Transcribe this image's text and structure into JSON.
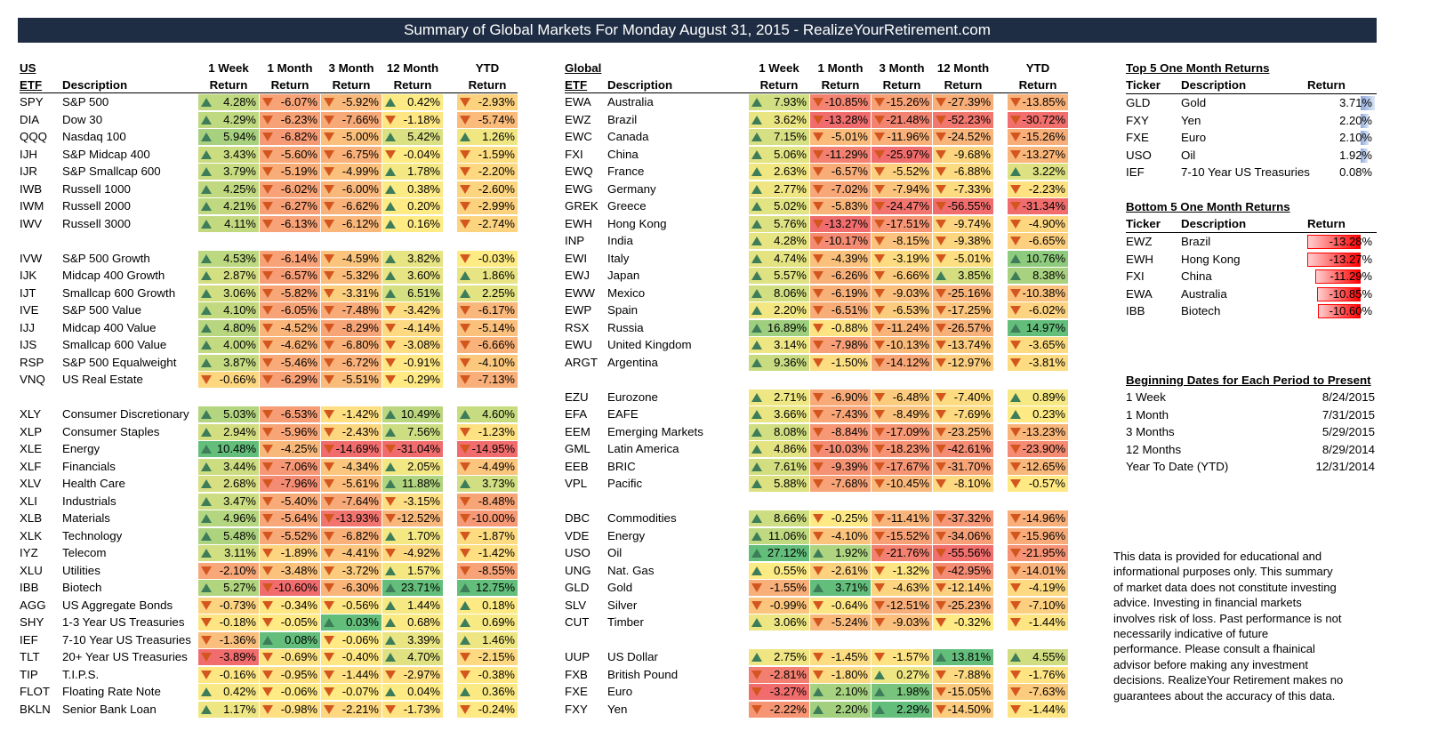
{
  "title": "Summary of Global Markets For Monday August 31, 2015 - RealizeYourRetirement.com",
  "us": {
    "section_label": "US",
    "headers": {
      "etf": "ETF",
      "desc": "Description",
      "w1a": "1 Week",
      "m1a": "1 Month",
      "m3a": "3 Month",
      "m12a": "12 Month",
      "ytda": "YTD",
      "ret": "Return"
    },
    "groups": [
      [
        [
          "SPY",
          "S&P 500",
          4.28,
          -6.07,
          -5.92,
          0.42,
          -2.93
        ],
        [
          "DIA",
          "Dow 30",
          4.29,
          -6.23,
          -7.66,
          -1.18,
          -5.74
        ],
        [
          "QQQ",
          "Nasdaq 100",
          5.94,
          -6.82,
          -5.0,
          5.42,
          1.26
        ],
        [
          "IJH",
          "S&P Midcap 400",
          3.43,
          -5.6,
          -6.75,
          -0.04,
          -1.59
        ],
        [
          "IJR",
          "S&P Smallcap 600",
          3.79,
          -5.19,
          -4.99,
          1.78,
          -2.2
        ],
        [
          "IWB",
          "Russell 1000",
          4.25,
          -6.02,
          -6.0,
          0.38,
          -2.6
        ],
        [
          "IWM",
          "Russell 2000",
          4.21,
          -6.27,
          -6.62,
          0.2,
          -2.99
        ],
        [
          "IWV",
          "Russell 3000",
          4.11,
          -6.13,
          -6.12,
          0.16,
          -2.74
        ]
      ],
      [
        [
          "IVW",
          "S&P 500 Growth",
          4.53,
          -6.14,
          -4.59,
          3.82,
          -0.03
        ],
        [
          "IJK",
          "Midcap 400 Growth",
          2.87,
          -6.57,
          -5.32,
          3.6,
          1.86
        ],
        [
          "IJT",
          "Smallcap 600 Growth",
          3.06,
          -5.82,
          -3.31,
          6.51,
          2.25
        ],
        [
          "IVE",
          "S&P 500 Value",
          4.1,
          -6.05,
          -7.48,
          -3.42,
          -6.17
        ],
        [
          "IJJ",
          "Midcap 400 Value",
          4.8,
          -4.52,
          -8.29,
          -4.14,
          -5.14
        ],
        [
          "IJS",
          "Smallcap 600 Value",
          4.0,
          -4.62,
          -6.8,
          -3.08,
          -6.66
        ],
        [
          "RSP",
          "S&P 500 Equalweight",
          3.87,
          -5.46,
          -6.72,
          -0.91,
          -4.1
        ],
        [
          "VNQ",
          "US Real Estate",
          -0.66,
          -6.29,
          -5.51,
          -0.29,
          -7.13
        ]
      ],
      [
        [
          "XLY",
          "Consumer Discretionary",
          5.03,
          -6.53,
          -1.42,
          10.49,
          4.6
        ],
        [
          "XLP",
          "Consumer Staples",
          2.94,
          -5.96,
          -2.43,
          7.56,
          -1.23
        ],
        [
          "XLE",
          "Energy",
          10.48,
          -4.25,
          -14.69,
          -31.04,
          -14.95
        ],
        [
          "XLF",
          "Financials",
          3.44,
          -7.06,
          -4.34,
          2.05,
          -4.49
        ],
        [
          "XLV",
          "Health Care",
          2.68,
          -7.96,
          -5.61,
          11.88,
          3.73
        ],
        [
          "XLI",
          "Industrials",
          3.47,
          -5.4,
          -7.64,
          -3.15,
          -8.48
        ],
        [
          "XLB",
          "Materials",
          4.96,
          -5.64,
          -13.93,
          -12.52,
          -10.0
        ],
        [
          "XLK",
          "Technology",
          5.48,
          -5.52,
          -6.82,
          1.7,
          -1.87
        ],
        [
          "IYZ",
          "Telecom",
          3.11,
          -1.89,
          -4.41,
          -4.92,
          -1.42
        ],
        [
          "XLU",
          "Utilities",
          -2.1,
          -3.48,
          -3.72,
          1.57,
          -8.55
        ],
        [
          "IBB",
          "Biotech",
          5.27,
          -10.6,
          -6.3,
          23.71,
          12.75
        ],
        [
          "AGG",
          "US Aggregate Bonds",
          -0.73,
          -0.34,
          -0.56,
          1.44,
          0.18
        ],
        [
          "SHY",
          "1-3 Year US Treasuries",
          -0.18,
          -0.05,
          0.03,
          0.68,
          0.69
        ],
        [
          "IEF",
          "7-10 Year US Treasuries",
          -1.36,
          0.08,
          -0.06,
          3.39,
          1.46
        ],
        [
          "TLT",
          "20+ Year US Treasuries",
          -3.89,
          -0.69,
          -0.4,
          4.7,
          -2.15
        ],
        [
          "TIP",
          "T.I.P.S.",
          -0.16,
          -0.95,
          -1.44,
          -2.97,
          -0.38
        ],
        [
          "FLOT",
          "Floating Rate Note",
          0.42,
          -0.06,
          -0.07,
          0.04,
          0.36
        ],
        [
          "BKLN",
          "Senior Bank Loan",
          1.17,
          -0.98,
          -2.21,
          -1.73,
          -0.24
        ]
      ]
    ]
  },
  "global": {
    "section_label": "Global",
    "groups": [
      [
        [
          "EWA",
          "Australia",
          7.93,
          -10.85,
          -15.26,
          -27.39,
          -13.85
        ],
        [
          "EWZ",
          "Brazil",
          3.62,
          -13.28,
          -21.48,
          -52.23,
          -30.72
        ],
        [
          "EWC",
          "Canada",
          7.15,
          -5.01,
          -11.96,
          -24.52,
          -15.26
        ],
        [
          "FXI",
          "China",
          5.06,
          -11.29,
          -25.97,
          -9.68,
          -13.27
        ],
        [
          "EWQ",
          "France",
          2.63,
          -6.57,
          -5.52,
          -6.88,
          3.22
        ],
        [
          "EWG",
          "Germany",
          2.77,
          -7.02,
          -7.94,
          -7.33,
          -2.23
        ],
        [
          "GREK",
          "Greece",
          5.02,
          -5.83,
          -24.47,
          -56.55,
          -31.34
        ],
        [
          "EWH",
          "Hong Kong",
          5.76,
          -13.27,
          -17.51,
          -9.74,
          -4.9
        ],
        [
          "INP",
          "India",
          4.28,
          -10.17,
          -8.15,
          -9.38,
          -6.65
        ],
        [
          "EWI",
          "Italy",
          4.74,
          -4.39,
          -3.19,
          -5.01,
          10.76
        ],
        [
          "EWJ",
          "Japan",
          5.57,
          -6.26,
          -6.66,
          3.85,
          8.38
        ],
        [
          "EWW",
          "Mexico",
          8.06,
          -6.19,
          -9.03,
          -25.16,
          -10.38
        ],
        [
          "EWP",
          "Spain",
          2.2,
          -6.51,
          -6.53,
          -17.25,
          -6.02
        ],
        [
          "RSX",
          "Russia",
          16.89,
          -0.88,
          -11.24,
          -26.57,
          14.97
        ],
        [
          "EWU",
          "United Kingdom",
          3.14,
          -7.98,
          -10.13,
          -13.74,
          -3.65
        ],
        [
          "ARGT",
          "Argentina",
          9.36,
          -1.5,
          -14.12,
          -12.97,
          -3.81
        ]
      ],
      [
        [
          "EZU",
          "Eurozone",
          2.71,
          -6.9,
          -6.48,
          -7.4,
          0.89
        ],
        [
          "EFA",
          "EAFE",
          3.66,
          -7.43,
          -8.49,
          -7.69,
          0.23
        ],
        [
          "EEM",
          "Emerging Markets",
          8.08,
          -8.84,
          -17.09,
          -23.25,
          -13.23
        ],
        [
          "GML",
          "Latin America",
          4.86,
          -10.03,
          -18.23,
          -42.61,
          -23.9
        ],
        [
          "EEB",
          "BRIC",
          7.61,
          -9.39,
          -17.67,
          -31.7,
          -12.65
        ],
        [
          "VPL",
          "Pacific",
          5.88,
          -7.68,
          -10.45,
          -8.1,
          -0.57
        ]
      ],
      [
        [
          "DBC",
          "Commodities",
          8.66,
          -0.25,
          -11.41,
          -37.32,
          -14.96
        ],
        [
          "VDE",
          "Energy",
          11.06,
          -4.1,
          -15.52,
          -34.06,
          -15.96
        ],
        [
          "USO",
          "Oil",
          27.12,
          1.92,
          -21.76,
          -55.56,
          -21.95
        ],
        [
          "UNG",
          "Nat. Gas",
          0.55,
          -2.61,
          -1.32,
          -42.95,
          -14.01
        ],
        [
          "GLD",
          "Gold",
          -1.55,
          3.71,
          -4.63,
          -12.14,
          -4.19
        ],
        [
          "SLV",
          "Silver",
          -0.99,
          -0.64,
          -12.51,
          -25.23,
          -7.1
        ],
        [
          "CUT",
          "Timber",
          3.06,
          -5.24,
          -9.03,
          -0.32,
          -1.44
        ]
      ],
      [
        [
          "UUP",
          "US Dollar",
          2.75,
          -1.45,
          -1.57,
          13.81,
          4.55
        ],
        [
          "FXB",
          "British Pound",
          -2.81,
          -1.8,
          0.27,
          -7.88,
          -1.76
        ],
        [
          "FXE",
          "Euro",
          -3.27,
          2.1,
          1.98,
          -15.05,
          -7.63
        ],
        [
          "FXY",
          "Yen",
          -2.22,
          2.2,
          2.29,
          -14.5,
          -1.44
        ]
      ]
    ]
  },
  "top5": {
    "title": "Top 5 One Month Returns",
    "headers": {
      "ticker": "Ticker",
      "desc": "Description",
      "ret": "Return"
    },
    "rows": [
      [
        "GLD",
        "Gold",
        3.71
      ],
      [
        "FXY",
        "Yen",
        2.2
      ],
      [
        "FXE",
        "Euro",
        2.1
      ],
      [
        "USO",
        "Oil",
        1.92
      ],
      [
        "IEF",
        "7-10 Year US Treasuries",
        0.08
      ]
    ],
    "labels": [
      "3.71%",
      "2.20%",
      "2.10%",
      "1.92%",
      "0.08%"
    ]
  },
  "bottom5": {
    "title": "Bottom 5 One Month Returns",
    "headers": {
      "ticker": "Ticker",
      "desc": "Description",
      "ret": "Return"
    },
    "rows": [
      [
        "EWZ",
        "Brazil",
        -13.28
      ],
      [
        "EWH",
        "Hong Kong",
        -13.27
      ],
      [
        "FXI",
        "China",
        -11.29
      ],
      [
        "EWA",
        "Australia",
        -10.85
      ],
      [
        "IBB",
        "Biotech",
        -10.6
      ]
    ],
    "labels": [
      "-13.28%",
      "-13.27%",
      "-11.29%",
      "-10.85%",
      "-10.60%"
    ]
  },
  "dates": {
    "title": "Beginning Dates for Each Period to Present",
    "rows": [
      [
        "1 Week",
        "8/24/2015"
      ],
      [
        "1 Month",
        "7/31/2015"
      ],
      [
        "3 Months",
        "5/29/2015"
      ],
      [
        "12 Months",
        "8/29/2014"
      ],
      [
        "Year To Date (YTD)",
        "12/31/2014"
      ]
    ]
  },
  "disclaimer": [
    "This data is provided for educational and",
    "informational purposes only. This summary",
    "of market data does not constitute investing",
    "advice. Investing in financial markets",
    "involves risk of loss.  Past performance is not",
    "necessarily  indicative of future",
    "performance. Please consult a fhainical",
    "advisor before making any investment",
    "decisions. RealizeYour Retirement makes no",
    "guarantees about the accuracy of this data."
  ],
  "colors": {
    "header_bg": "#1f2d44",
    "arrow_up": "#3d7d5a",
    "arrow_down": "#d4561f",
    "positive_bar": "#8ea9db",
    "negative_bar": "#ff0000"
  }
}
